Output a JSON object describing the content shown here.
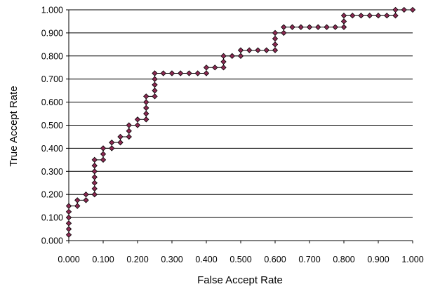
{
  "chart_data": {
    "type": "line",
    "xlabel": "False Accept Rate",
    "ylabel": "True Accept Rate",
    "xlim": [
      0,
      1
    ],
    "ylim": [
      0,
      1
    ],
    "x_ticks": [
      "0.000",
      "0.100",
      "0.200",
      "0.300",
      "0.400",
      "0.500",
      "0.600",
      "0.700",
      "0.800",
      "0.900",
      "1.000"
    ],
    "y_ticks": [
      "0.000",
      "0.100",
      "0.200",
      "0.300",
      "0.400",
      "0.500",
      "0.600",
      "0.700",
      "0.800",
      "0.900",
      "1.000"
    ],
    "grid": "horizontal",
    "marker": "diamond",
    "line_color": "#000000",
    "marker_color": "#8b2a52",
    "series": [
      {
        "points": [
          [
            0.0,
            0.025
          ],
          [
            0.0,
            0.05
          ],
          [
            0.0,
            0.075
          ],
          [
            0.0,
            0.1
          ],
          [
            0.0,
            0.125
          ],
          [
            0.0,
            0.15
          ],
          [
            0.025,
            0.15
          ],
          [
            0.025,
            0.175
          ],
          [
            0.05,
            0.175
          ],
          [
            0.05,
            0.2
          ],
          [
            0.075,
            0.2
          ],
          [
            0.075,
            0.225
          ],
          [
            0.075,
            0.25
          ],
          [
            0.075,
            0.275
          ],
          [
            0.075,
            0.3
          ],
          [
            0.075,
            0.325
          ],
          [
            0.075,
            0.35
          ],
          [
            0.1,
            0.35
          ],
          [
            0.1,
            0.375
          ],
          [
            0.1,
            0.4
          ],
          [
            0.125,
            0.4
          ],
          [
            0.125,
            0.425
          ],
          [
            0.15,
            0.425
          ],
          [
            0.15,
            0.45
          ],
          [
            0.175,
            0.45
          ],
          [
            0.175,
            0.475
          ],
          [
            0.175,
            0.5
          ],
          [
            0.2,
            0.5
          ],
          [
            0.2,
            0.525
          ],
          [
            0.225,
            0.525
          ],
          [
            0.225,
            0.55
          ],
          [
            0.225,
            0.575
          ],
          [
            0.225,
            0.6
          ],
          [
            0.225,
            0.625
          ],
          [
            0.25,
            0.625
          ],
          [
            0.25,
            0.65
          ],
          [
            0.25,
            0.675
          ],
          [
            0.25,
            0.7
          ],
          [
            0.25,
            0.725
          ],
          [
            0.275,
            0.725
          ],
          [
            0.3,
            0.725
          ],
          [
            0.325,
            0.725
          ],
          [
            0.35,
            0.725
          ],
          [
            0.375,
            0.725
          ],
          [
            0.4,
            0.725
          ],
          [
            0.4,
            0.75
          ],
          [
            0.425,
            0.75
          ],
          [
            0.45,
            0.75
          ],
          [
            0.45,
            0.775
          ],
          [
            0.45,
            0.8
          ],
          [
            0.475,
            0.8
          ],
          [
            0.5,
            0.8
          ],
          [
            0.5,
            0.825
          ],
          [
            0.525,
            0.825
          ],
          [
            0.55,
            0.825
          ],
          [
            0.575,
            0.825
          ],
          [
            0.6,
            0.825
          ],
          [
            0.6,
            0.85
          ],
          [
            0.6,
            0.875
          ],
          [
            0.6,
            0.9
          ],
          [
            0.625,
            0.9
          ],
          [
            0.625,
            0.925
          ],
          [
            0.65,
            0.925
          ],
          [
            0.675,
            0.925
          ],
          [
            0.7,
            0.925
          ],
          [
            0.725,
            0.925
          ],
          [
            0.75,
            0.925
          ],
          [
            0.775,
            0.925
          ],
          [
            0.8,
            0.925
          ],
          [
            0.8,
            0.95
          ],
          [
            0.8,
            0.975
          ],
          [
            0.825,
            0.975
          ],
          [
            0.85,
            0.975
          ],
          [
            0.875,
            0.975
          ],
          [
            0.9,
            0.975
          ],
          [
            0.925,
            0.975
          ],
          [
            0.95,
            0.975
          ],
          [
            0.95,
            1.0
          ],
          [
            0.975,
            1.0
          ],
          [
            1.0,
            1.0
          ]
        ]
      }
    ]
  }
}
